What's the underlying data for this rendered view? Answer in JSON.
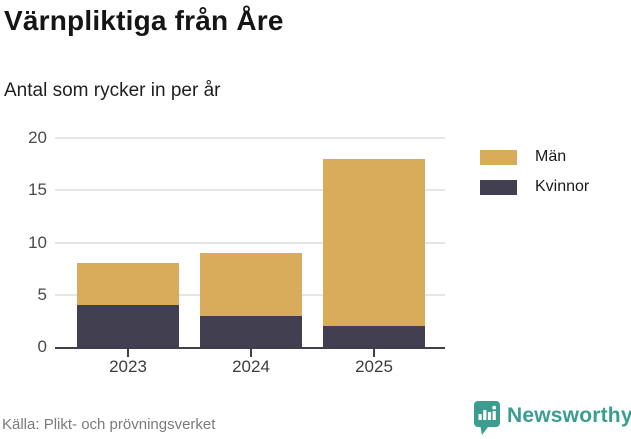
{
  "header": {
    "title": "Värnpliktiga från Åre",
    "subtitle": "Antal som rycker in per år"
  },
  "chart_data": {
    "type": "bar",
    "stacked": true,
    "title": "Värnpliktiga från Åre",
    "subtitle": "Antal som rycker in per år",
    "categories": [
      "2023",
      "2024",
      "2025"
    ],
    "series": [
      {
        "name": "Män",
        "color": "#d9ac5c",
        "values": [
          4,
          6,
          16
        ]
      },
      {
        "name": "Kvinnor",
        "color": "#413f50",
        "values": [
          4,
          3,
          2
        ]
      }
    ],
    "stack_totals": [
      8,
      9,
      18
    ],
    "ylim": [
      0,
      20
    ],
    "yticks": [
      0,
      5,
      10,
      15,
      20
    ],
    "grid": true,
    "legend_position": "right",
    "legend_order": [
      "Män",
      "Kvinnor"
    ]
  },
  "footer": {
    "source": "Källa: Plikt- och prövningsverket",
    "brand": "Newsworthy"
  },
  "colors": {
    "man": "#d9ac5c",
    "kvinnor": "#413f50",
    "axis": "#3f3e4e",
    "gridline": "#e6e6e6",
    "label": "#4a4a4a",
    "muted": "#7b7b7b",
    "brand_teal": "#3a9d90"
  }
}
